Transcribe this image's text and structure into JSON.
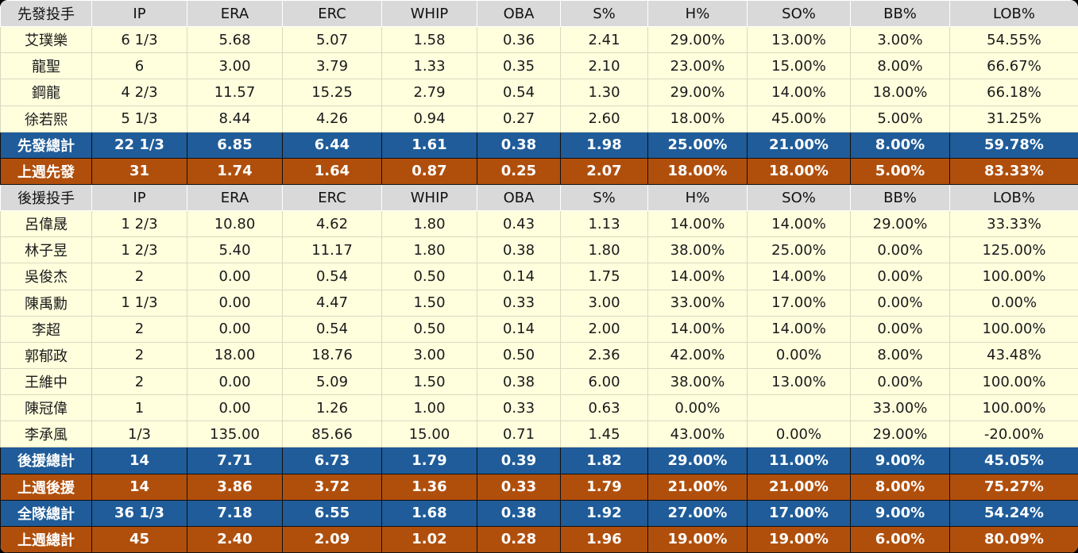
{
  "colors": {
    "header_bg": "#d9d9d9",
    "row_bg": "#ffffde",
    "subtotal_bg": "#1f5c99",
    "lastweek_bg": "#b04f0c",
    "data_text": "#1a1a1a",
    "total_text": "#ffffff"
  },
  "chart_data": {
    "type": "table",
    "title": "",
    "columns": [
      "先發投手",
      "IP",
      "ERA",
      "ERC",
      "WHIP",
      "OBA",
      "S%",
      "H%",
      "SO%",
      "BB%",
      "LOB%"
    ],
    "rows": [
      {
        "type": "header",
        "cells": [
          "先發投手",
          "IP",
          "ERA",
          "ERC",
          "WHIP",
          "OBA",
          "S%",
          "H%",
          "SO%",
          "BB%",
          "LOB%"
        ]
      },
      {
        "type": "data",
        "cells": [
          "艾璞樂",
          "6 1/3",
          "5.68",
          "5.07",
          "1.58",
          "0.36",
          "2.41",
          "29.00%",
          "13.00%",
          "3.00%",
          "54.55%"
        ]
      },
      {
        "type": "data",
        "cells": [
          "龍聖",
          "6",
          "3.00",
          "3.79",
          "1.33",
          "0.35",
          "2.10",
          "23.00%",
          "15.00%",
          "8.00%",
          "66.67%"
        ]
      },
      {
        "type": "data",
        "cells": [
          "鋼龍",
          "4 2/3",
          "11.57",
          "15.25",
          "2.79",
          "0.54",
          "1.30",
          "29.00%",
          "14.00%",
          "18.00%",
          "66.18%"
        ]
      },
      {
        "type": "data",
        "cells": [
          "徐若熙",
          "5 1/3",
          "8.44",
          "4.26",
          "0.94",
          "0.27",
          "2.60",
          "18.00%",
          "45.00%",
          "5.00%",
          "31.25%"
        ]
      },
      {
        "type": "total",
        "cells": [
          "先發總計",
          "22 1/3",
          "6.85",
          "6.44",
          "1.61",
          "0.38",
          "1.98",
          "25.00%",
          "21.00%",
          "8.00%",
          "59.78%"
        ]
      },
      {
        "type": "week",
        "cells": [
          "上週先發",
          "31",
          "1.74",
          "1.64",
          "0.87",
          "0.25",
          "2.07",
          "18.00%",
          "18.00%",
          "5.00%",
          "83.33%"
        ]
      },
      {
        "type": "header",
        "cells": [
          "後援投手",
          "IP",
          "ERA",
          "ERC",
          "WHIP",
          "OBA",
          "S%",
          "H%",
          "SO%",
          "BB%",
          "LOB%"
        ]
      },
      {
        "type": "data",
        "cells": [
          "呂偉晟",
          "1 2/3",
          "10.80",
          "4.62",
          "1.80",
          "0.43",
          "1.13",
          "14.00%",
          "14.00%",
          "29.00%",
          "33.33%"
        ]
      },
      {
        "type": "data",
        "cells": [
          "林子昱",
          "1 2/3",
          "5.40",
          "11.17",
          "1.80",
          "0.38",
          "1.80",
          "38.00%",
          "25.00%",
          "0.00%",
          "125.00%"
        ]
      },
      {
        "type": "data",
        "cells": [
          "吳俊杰",
          "2",
          "0.00",
          "0.54",
          "0.50",
          "0.14",
          "1.75",
          "14.00%",
          "14.00%",
          "0.00%",
          "100.00%"
        ]
      },
      {
        "type": "data",
        "cells": [
          "陳禹勳",
          "1 1/3",
          "0.00",
          "4.47",
          "1.50",
          "0.33",
          "3.00",
          "33.00%",
          "17.00%",
          "0.00%",
          "0.00%"
        ]
      },
      {
        "type": "data",
        "cells": [
          "李超",
          "2",
          "0.00",
          "0.54",
          "0.50",
          "0.14",
          "2.00",
          "14.00%",
          "14.00%",
          "0.00%",
          "100.00%"
        ]
      },
      {
        "type": "data",
        "cells": [
          "郭郁政",
          "2",
          "18.00",
          "18.76",
          "3.00",
          "0.50",
          "2.36",
          "42.00%",
          "0.00%",
          "8.00%",
          "43.48%"
        ]
      },
      {
        "type": "data",
        "cells": [
          "王維中",
          "2",
          "0.00",
          "5.09",
          "1.50",
          "0.38",
          "6.00",
          "38.00%",
          "13.00%",
          "0.00%",
          "100.00%"
        ]
      },
      {
        "type": "data",
        "cells": [
          "陳冠偉",
          "1",
          "0.00",
          "1.26",
          "1.00",
          "0.33",
          "0.63",
          "0.00%",
          "",
          "33.00%",
          "100.00%"
        ]
      },
      {
        "type": "data",
        "cells": [
          "李承風",
          "1/3",
          "135.00",
          "85.66",
          "15.00",
          "0.71",
          "1.45",
          "43.00%",
          "0.00%",
          "29.00%",
          "-20.00%"
        ]
      },
      {
        "type": "total",
        "cells": [
          "後援總計",
          "14",
          "7.71",
          "6.73",
          "1.79",
          "0.39",
          "1.82",
          "29.00%",
          "11.00%",
          "9.00%",
          "45.05%"
        ]
      },
      {
        "type": "week",
        "cells": [
          "上週後援",
          "14",
          "3.86",
          "3.72",
          "1.36",
          "0.33",
          "1.79",
          "21.00%",
          "21.00%",
          "8.00%",
          "75.27%"
        ]
      },
      {
        "type": "total",
        "cells": [
          "全隊總計",
          "36 1/3",
          "7.18",
          "6.55",
          "1.68",
          "0.38",
          "1.92",
          "27.00%",
          "17.00%",
          "9.00%",
          "54.24%"
        ]
      },
      {
        "type": "week",
        "cells": [
          "上週總計",
          "45",
          "2.40",
          "2.09",
          "1.02",
          "0.28",
          "1.96",
          "19.00%",
          "19.00%",
          "6.00%",
          "80.09%"
        ]
      }
    ]
  }
}
